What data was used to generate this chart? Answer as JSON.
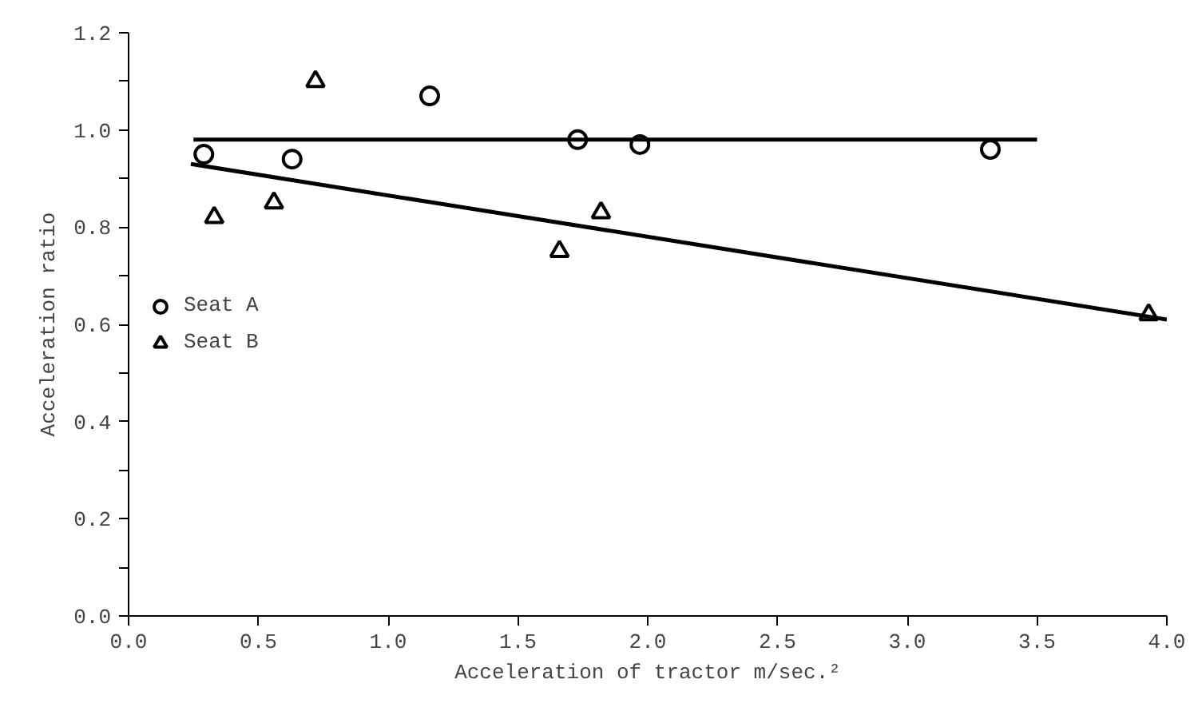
{
  "chart_data": {
    "type": "scatter",
    "xlabel": "Acceleration of tractor m/sec.²",
    "ylabel": "Acceleration ratio",
    "xlim": [
      0,
      4.0
    ],
    "ylim": [
      0,
      1.2
    ],
    "xticks": [
      {
        "value": 0,
        "label": "0.0"
      },
      {
        "value": 0.5,
        "label": "0.5"
      },
      {
        "value": 1,
        "label": "1.0"
      },
      {
        "value": 1.5,
        "label": "1.5"
      },
      {
        "value": 2,
        "label": "2.0"
      },
      {
        "value": 2.5,
        "label": "2.5"
      },
      {
        "value": 3,
        "label": "3.0"
      },
      {
        "value": 3.5,
        "label": "3.5"
      },
      {
        "value": 4,
        "label": "4.0"
      }
    ],
    "yticks": [
      {
        "value": 0,
        "label": "0.0"
      },
      {
        "value": 0.1,
        "label": null
      },
      {
        "value": 0.2,
        "label": "0.2"
      },
      {
        "value": 0.3,
        "label": null
      },
      {
        "value": 0.4,
        "label": "0.4"
      },
      {
        "value": 0.5,
        "label": null
      },
      {
        "value": 0.6,
        "label": "0.6"
      },
      {
        "value": 0.7,
        "label": null
      },
      {
        "value": 0.8,
        "label": "0.8"
      },
      {
        "value": 0.9,
        "label": null
      },
      {
        "value": 1.0,
        "label": "1.0"
      },
      {
        "value": 1.1,
        "label": null
      },
      {
        "value": 1.2,
        "label": "1.2"
      }
    ],
    "grid": false,
    "legend": "left",
    "series": [
      {
        "name": "Seat A",
        "color": "#000000",
        "marker": "circle",
        "x": [
          0.29,
          0.63,
          1.16,
          1.73,
          1.97,
          3.32
        ],
        "values": [
          0.95,
          0.94,
          1.07,
          0.98,
          0.97,
          0.96
        ]
      },
      {
        "name": "Seat B",
        "color": "#000000",
        "marker": "triangle",
        "x": [
          0.33,
          0.56,
          0.72,
          1.66,
          1.82,
          3.93
        ],
        "values": [
          0.82,
          0.85,
          1.1,
          0.75,
          0.83,
          0.62
        ]
      },
      {
        "type": "line",
        "color": "#000000",
        "marker": "none",
        "x": [
          0.25,
          3.5
        ],
        "values": [
          0.98,
          0.98
        ]
      },
      {
        "type": "line",
        "color": "#000000",
        "marker": "none",
        "x": [
          0.24,
          4.0
        ],
        "values": [
          0.93,
          0.61
        ]
      }
    ]
  }
}
